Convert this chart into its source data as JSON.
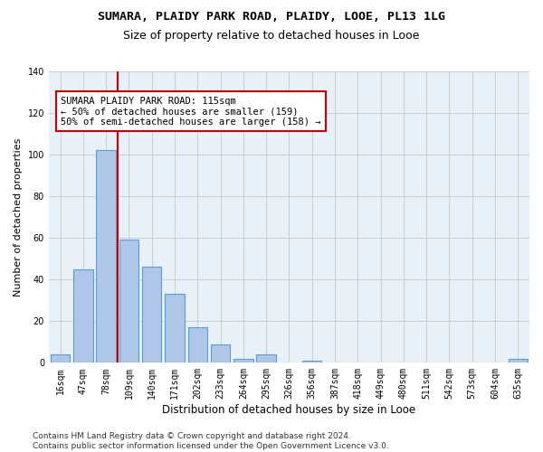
{
  "title1": "SUMARA, PLAIDY PARK ROAD, PLAIDY, LOOE, PL13 1LG",
  "title2": "Size of property relative to detached houses in Looe",
  "xlabel": "Distribution of detached houses by size in Looe",
  "ylabel": "Number of detached properties",
  "categories": [
    "16sqm",
    "47sqm",
    "78sqm",
    "109sqm",
    "140sqm",
    "171sqm",
    "202sqm",
    "233sqm",
    "264sqm",
    "295sqm",
    "326sqm",
    "356sqm",
    "387sqm",
    "418sqm",
    "449sqm",
    "480sqm",
    "511sqm",
    "542sqm",
    "573sqm",
    "604sqm",
    "635sqm"
  ],
  "values": [
    4,
    45,
    102,
    59,
    46,
    33,
    17,
    9,
    2,
    4,
    0,
    1,
    0,
    0,
    0,
    0,
    0,
    0,
    0,
    0,
    2
  ],
  "bar_color": "#aec6e8",
  "bar_edgecolor": "#5a9fd4",
  "bar_linewidth": 0.8,
  "vline_index": 3,
  "vline_color": "#cc0000",
  "vline_linewidth": 1.5,
  "annotation_text": "SUMARA PLAIDY PARK ROAD: 115sqm\n← 50% of detached houses are smaller (159)\n50% of semi-detached houses are larger (158) →",
  "annotation_box_color": "white",
  "annotation_box_edgecolor": "#cc0000",
  "annotation_fontsize": 7.5,
  "ylim": [
    0,
    140
  ],
  "yticks": [
    0,
    20,
    40,
    60,
    80,
    100,
    120,
    140
  ],
  "grid_color": "#cccccc",
  "bg_color": "#e8f0f8",
  "footer_text": "Contains HM Land Registry data © Crown copyright and database right 2024.\nContains public sector information licensed under the Open Government Licence v3.0.",
  "title1_fontsize": 9.5,
  "title2_fontsize": 9,
  "xlabel_fontsize": 8.5,
  "ylabel_fontsize": 8,
  "tick_fontsize": 7,
  "footer_fontsize": 6.5
}
